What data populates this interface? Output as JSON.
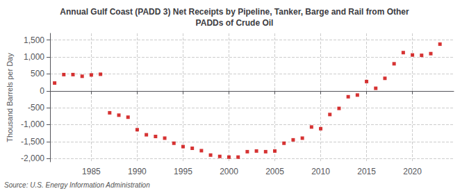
{
  "chart_data": {
    "type": "scatter",
    "title": "Annual Gulf Coast (PADD 3) Net Receipts by Pipeline, Tanker, Barge and Rail from Other\nPADDs of Crude Oil",
    "ylabel": "Thousand Barrels per Day",
    "source": "Source: U.S. Energy Information Administration",
    "color": "#cc0000",
    "marker": "square",
    "grid": true,
    "ylim": [
      -2100,
      1700
    ],
    "yticks": [
      {
        "value": -2000,
        "label": "-2,000"
      },
      {
        "value": -1500,
        "label": "-1,500"
      },
      {
        "value": -1000,
        "label": "-1,000"
      },
      -500,
      0,
      500,
      {
        "value": 1000,
        "label": "1,000"
      },
      {
        "value": 1500,
        "label": "1,500"
      }
    ],
    "xlim": [
      1980.5,
      2024.5
    ],
    "xticks": [
      1985,
      1990,
      1995,
      2000,
      2005,
      2010,
      2015,
      2020
    ],
    "x": [
      1981,
      1982,
      1983,
      1984,
      1985,
      1986,
      1987,
      1988,
      1989,
      1990,
      1991,
      1992,
      1993,
      1994,
      1995,
      1996,
      1997,
      1998,
      1999,
      2000,
      2001,
      2002,
      2003,
      2004,
      2005,
      2006,
      2007,
      2008,
      2009,
      2010,
      2011,
      2012,
      2013,
      2014,
      2015,
      2016,
      2017,
      2018,
      2019,
      2020,
      2021,
      2022,
      2023
    ],
    "values": [
      230,
      480,
      480,
      430,
      470,
      490,
      -650,
      -720,
      -780,
      -1150,
      -1300,
      -1350,
      -1400,
      -1550,
      -1650,
      -1700,
      -1770,
      -1900,
      -1940,
      -1960,
      -1960,
      -1800,
      -1780,
      -1800,
      -1780,
      -1550,
      -1450,
      -1400,
      -1070,
      -1120,
      -700,
      -520,
      -175,
      -125,
      275,
      75,
      370,
      800,
      1130,
      1060,
      1050,
      1100,
      1380
    ]
  }
}
